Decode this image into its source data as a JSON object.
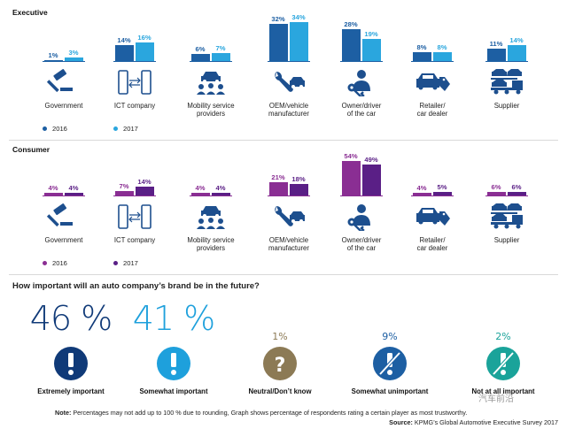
{
  "chart_data": [
    {
      "type": "bar",
      "title": "Executive",
      "categories": [
        "Government",
        "ICT company",
        "Mobility service providers",
        "OEM/vehicle manufacturer",
        "Owner/driver of the car",
        "Retailer/ car dealer",
        "Supplier"
      ],
      "series": [
        {
          "name": "2016",
          "color": "#1d5fa3",
          "values": [
            1,
            14,
            6,
            32,
            28,
            8,
            11
          ]
        },
        {
          "name": "2017",
          "color": "#2aa6de",
          "values": [
            3,
            16,
            7,
            34,
            19,
            8,
            14
          ]
        }
      ],
      "value_suffix": "%"
    },
    {
      "type": "bar",
      "title": "Consumer",
      "categories": [
        "Government",
        "ICT company",
        "Mobility service providers",
        "OEM/vehicle manufacturer",
        "Owner/driver of the car",
        "Retailer/ car dealer",
        "Supplier"
      ],
      "series": [
        {
          "name": "2016",
          "color": "#8a2e93",
          "values": [
            4,
            7,
            4,
            21,
            54,
            4,
            6
          ]
        },
        {
          "name": "2017",
          "color": "#5a1f86",
          "values": [
            4,
            14,
            4,
            18,
            49,
            5,
            6
          ]
        }
      ],
      "value_suffix": "%"
    },
    {
      "type": "bar",
      "title": "How important will an auto company’s brand be in the future?",
      "categories": [
        "Extremely important",
        "Somewhat important",
        "Neutral/Don’t know",
        "Somewhat unimportant",
        "Not at all important"
      ],
      "values": [
        46,
        41,
        1,
        9,
        2
      ],
      "labels": [
        "46 %",
        "41 %",
        "1%",
        "9%",
        "2%"
      ],
      "colors": [
        "#103a78",
        "#1ea0dc",
        "#8c7a55",
        "#1d5fa3",
        "#1aa39a"
      ]
    }
  ],
  "categories": [
    {
      "label_line1": "Government",
      "label_line2": "",
      "icon": "gavel-icon"
    },
    {
      "label_line1": "ICT company",
      "label_line2": "",
      "icon": "phones-icon"
    },
    {
      "label_line1": "Mobility service",
      "label_line2": "providers",
      "icon": "people-car-icon"
    },
    {
      "label_line1": "OEM/vehicle",
      "label_line2": "manufacturer",
      "icon": "wrench-car-icon"
    },
    {
      "label_line1": "Owner/driver",
      "label_line2": "of the car",
      "icon": "person-key-icon"
    },
    {
      "label_line1": "Retailer/",
      "label_line2": "car dealer",
      "icon": "car-tag-icon"
    },
    {
      "label_line1": "Supplier",
      "label_line2": "",
      "icon": "car-transporter-icon"
    }
  ],
  "executive": {
    "title": "Executive",
    "legend_2016": "2016",
    "legend_2017": "2017"
  },
  "consumer": {
    "title": "Consumer",
    "legend_2016": "2016",
    "legend_2017": "2017"
  },
  "brand": {
    "question": "How important will an auto company’s brand be in the future?",
    "icons": [
      "exclamation-icon",
      "exclamation-icon",
      "question-icon",
      "slashed-exclamation-icon",
      "slashed-exclamation-icon"
    ]
  },
  "footer": {
    "note_bold": "Note:",
    "note_text": " Percentages may not add up to 100 % due to rounding, Graph shows percentage of respondents rating a certain player as most trustworthy.",
    "source_bold": "Source:",
    "source_text": " KPMG’s Global Automotive Executive Survey 2017"
  },
  "watermark": "汽车前沿"
}
